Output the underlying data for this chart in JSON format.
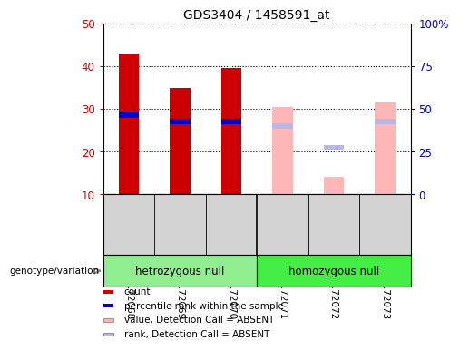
{
  "title": "GDS3404 / 1458591_at",
  "samples": [
    "GSM172068",
    "GSM172069",
    "GSM172070",
    "GSM172071",
    "GSM172072",
    "GSM172073"
  ],
  "count_values": [
    43,
    35,
    39.5,
    null,
    null,
    null
  ],
  "rank_values": [
    28.5,
    27,
    27,
    null,
    null,
    null
  ],
  "absent_value_values": [
    null,
    null,
    null,
    30.5,
    14,
    31.5
  ],
  "absent_rank_values": [
    null,
    null,
    null,
    26,
    21,
    27
  ],
  "ylim_left": [
    10,
    50
  ],
  "ylim_right": [
    0,
    100
  ],
  "yticks_left": [
    10,
    20,
    30,
    40,
    50
  ],
  "yticks_right": [
    0,
    25,
    50,
    75,
    100
  ],
  "groups": [
    {
      "label": "hetrozygous null",
      "color": "#90ee90"
    },
    {
      "label": "homozygous null",
      "color": "#44ee44"
    }
  ],
  "bar_width": 0.4,
  "color_count": "#cc0000",
  "color_rank": "#0000cc",
  "color_absent_value": "#ffb6b6",
  "color_absent_rank": "#b8b8e8",
  "left_tick_color": "#cc0000",
  "right_tick_color": "#0000cc",
  "bg_label_area": "#d3d3d3",
  "legend_items": [
    {
      "label": "count",
      "color": "#cc0000"
    },
    {
      "label": "percentile rank within the sample",
      "color": "#0000cc"
    },
    {
      "label": "value, Detection Call = ABSENT",
      "color": "#ffb6b6"
    },
    {
      "label": "rank, Detection Call = ABSENT",
      "color": "#b8b8e8"
    }
  ]
}
